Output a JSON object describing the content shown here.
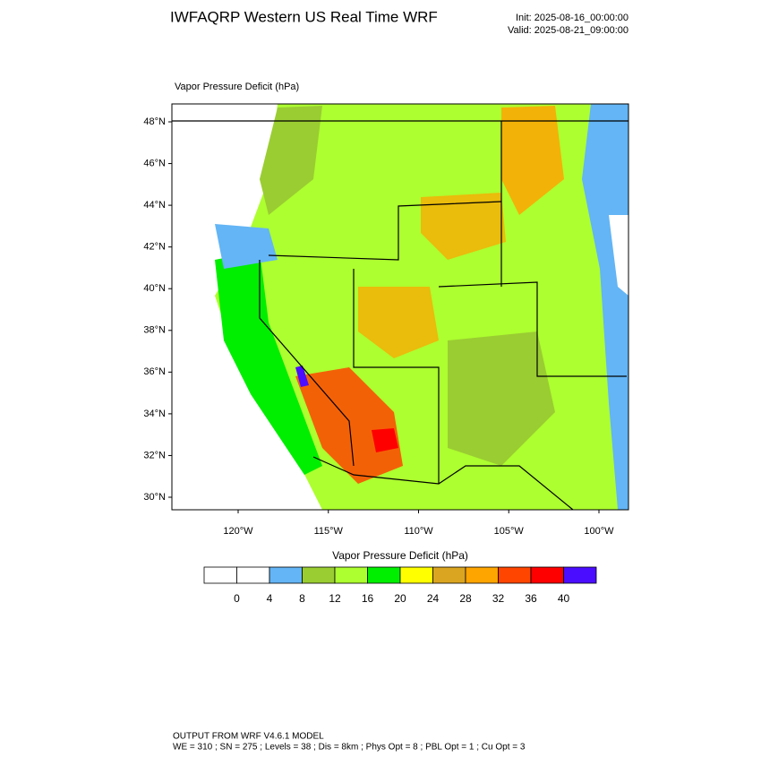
{
  "header": {
    "title": "IWFAQRP Western US Real Time WRF",
    "init": "Init: 2025-08-16_00:00:00",
    "valid": "Valid: 2025-08-21_09:00:00"
  },
  "map": {
    "field_label": "Vapor Pressure Deficit   (hPa)",
    "lat_ticks": [
      {
        "value": 48,
        "label": "48°N"
      },
      {
        "value": 46,
        "label": "46°N"
      },
      {
        "value": 44,
        "label": "44°N"
      },
      {
        "value": 42,
        "label": "42°N"
      },
      {
        "value": 40,
        "label": "40°N"
      },
      {
        "value": 38,
        "label": "38°N"
      },
      {
        "value": 36,
        "label": "36°N"
      },
      {
        "value": 34,
        "label": "34°N"
      },
      {
        "value": 32,
        "label": "32°N"
      },
      {
        "value": 30,
        "label": "30°N"
      }
    ],
    "lon_ticks": [
      {
        "value": -120,
        "label": "120°W"
      },
      {
        "value": -115,
        "label": "115°W"
      },
      {
        "value": -110,
        "label": "110°W"
      },
      {
        "value": -105,
        "label": "105°W"
      },
      {
        "value": -100,
        "label": "100°W"
      }
    ]
  },
  "colorbar": {
    "title": "Vapor Pressure Deficit  (hPa)",
    "levels": [
      0,
      4,
      8,
      12,
      16,
      20,
      24,
      28,
      32,
      36,
      40
    ],
    "colors": [
      "#ffffff",
      "#ffffff",
      "#63b5f5",
      "#9acd32",
      "#adff2f",
      "#00ee00",
      "#ffff00",
      "#daa520",
      "#ffa500",
      "#ff4500",
      "#ff0000",
      "#4b0dff"
    ]
  },
  "footer": {
    "line1": "OUTPUT FROM WRF V4.6.1 MODEL",
    "line2": "WE = 310 ; SN = 275 ; Levels = 38 ; Dis = 8km ; Phys Opt = 8 ; PBL Opt = 1 ; Cu Opt = 3"
  }
}
